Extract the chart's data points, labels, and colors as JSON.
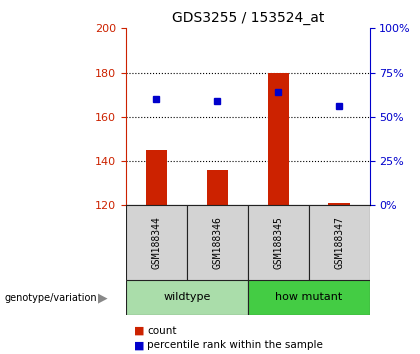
{
  "title": "GDS3255 / 153524_at",
  "samples": [
    "GSM188344",
    "GSM188346",
    "GSM188345",
    "GSM188347"
  ],
  "counts": [
    145,
    136,
    180,
    121
  ],
  "percentiles": [
    168,
    167,
    171,
    165
  ],
  "ylim_left": [
    120,
    200
  ],
  "ylim_right": [
    0,
    100
  ],
  "yticks_left": [
    120,
    140,
    160,
    180,
    200
  ],
  "yticks_right": [
    0,
    25,
    50,
    75,
    100
  ],
  "bar_color": "#cc2200",
  "dot_color": "#0000cc",
  "bar_width": 0.35,
  "axis_color_left": "#cc2200",
  "axis_color_right": "#0000cc",
  "sample_box_color": "#d3d3d3",
  "sample_box_edgecolor": "#222222",
  "group_wildtype_color": "#aaddaa",
  "group_mutant_color": "#44cc44",
  "dotted_lines": [
    140,
    160,
    180
  ],
  "legend_count_label": "count",
  "legend_pct_label": "percentile rank within the sample",
  "genotype_label": "genotype/variation"
}
